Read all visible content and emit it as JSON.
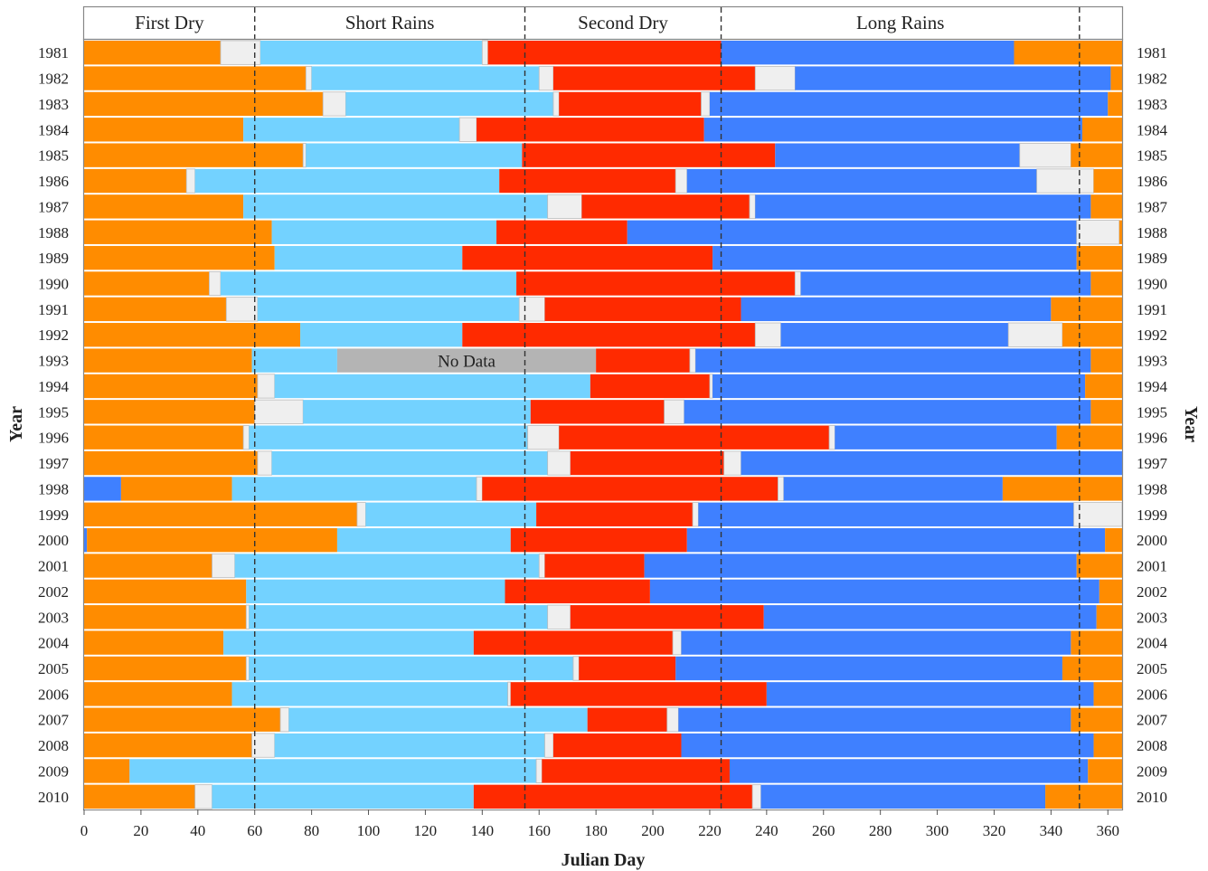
{
  "chart_data": {
    "type": "bar",
    "orientation": "horizontal-stacked",
    "xlabel": "Julian Day",
    "ylabel": "Year",
    "xlim": [
      0,
      365
    ],
    "x_ticks": [
      0,
      20,
      40,
      60,
      80,
      100,
      120,
      140,
      160,
      180,
      200,
      220,
      240,
      260,
      280,
      300,
      320,
      340,
      360
    ],
    "season_labels": [
      "First Dry",
      "Short Rains",
      "Second Dry",
      "Long Rains"
    ],
    "season_boundaries": [
      60,
      155,
      224,
      350
    ],
    "no_data_label": "No Data",
    "colors": {
      "dry": "#FF8C00",
      "short_rains": "#73D2FF",
      "second_dry": "#FF2A00",
      "long_rains": "#3F80FF",
      "gap": "#EFEFEF",
      "no_data": "#B4B4B4"
    },
    "legend": "none",
    "grid": false,
    "years": [
      {
        "year": "1981",
        "segments": [
          [
            "dry",
            0,
            48
          ],
          [
            "gap",
            48,
            62
          ],
          [
            "short_rains",
            62,
            140
          ],
          [
            "gap",
            140,
            142
          ],
          [
            "second_dry",
            142,
            224
          ],
          [
            "long_rains",
            224,
            327
          ],
          [
            "dry",
            327,
            365
          ]
        ]
      },
      {
        "year": "1982",
        "segments": [
          [
            "dry",
            0,
            78
          ],
          [
            "gap",
            78,
            80
          ],
          [
            "short_rains",
            80,
            160
          ],
          [
            "gap",
            160,
            165
          ],
          [
            "second_dry",
            165,
            236
          ],
          [
            "gap",
            236,
            250
          ],
          [
            "long_rains",
            250,
            361
          ],
          [
            "dry",
            361,
            365
          ]
        ]
      },
      {
        "year": "1983",
        "segments": [
          [
            "dry",
            0,
            84
          ],
          [
            "gap",
            84,
            92
          ],
          [
            "short_rains",
            92,
            165
          ],
          [
            "gap",
            165,
            167
          ],
          [
            "second_dry",
            167,
            217
          ],
          [
            "gap",
            217,
            220
          ],
          [
            "long_rains",
            220,
            360
          ],
          [
            "dry",
            360,
            365
          ]
        ]
      },
      {
        "year": "1984",
        "segments": [
          [
            "dry",
            0,
            56
          ],
          [
            "short_rains",
            56,
            132
          ],
          [
            "gap",
            132,
            138
          ],
          [
            "second_dry",
            138,
            218
          ],
          [
            "long_rains",
            218,
            351
          ],
          [
            "dry",
            351,
            365
          ]
        ]
      },
      {
        "year": "1985",
        "segments": [
          [
            "dry",
            0,
            77
          ],
          [
            "gap",
            77,
            78
          ],
          [
            "short_rains",
            78,
            154
          ],
          [
            "second_dry",
            154,
            243
          ],
          [
            "long_rains",
            243,
            329
          ],
          [
            "gap",
            329,
            347
          ],
          [
            "dry",
            347,
            365
          ]
        ]
      },
      {
        "year": "1986",
        "segments": [
          [
            "dry",
            0,
            36
          ],
          [
            "gap",
            36,
            39
          ],
          [
            "short_rains",
            39,
            146
          ],
          [
            "second_dry",
            146,
            208
          ],
          [
            "gap",
            208,
            212
          ],
          [
            "long_rains",
            212,
            335
          ],
          [
            "gap",
            335,
            355
          ],
          [
            "dry",
            355,
            365
          ]
        ]
      },
      {
        "year": "1987",
        "segments": [
          [
            "dry",
            0,
            56
          ],
          [
            "short_rains",
            56,
            163
          ],
          [
            "gap",
            163,
            175
          ],
          [
            "second_dry",
            175,
            234
          ],
          [
            "gap",
            234,
            236
          ],
          [
            "long_rains",
            236,
            354
          ],
          [
            "dry",
            354,
            365
          ]
        ]
      },
      {
        "year": "1988",
        "segments": [
          [
            "dry",
            0,
            66
          ],
          [
            "short_rains",
            66,
            145
          ],
          [
            "second_dry",
            145,
            191
          ],
          [
            "long_rains",
            191,
            349
          ],
          [
            "gap",
            349,
            364
          ],
          [
            "dry",
            364,
            365
          ]
        ]
      },
      {
        "year": "1989",
        "segments": [
          [
            "dry",
            0,
            67
          ],
          [
            "short_rains",
            67,
            133
          ],
          [
            "second_dry",
            133,
            221
          ],
          [
            "long_rains",
            221,
            349
          ],
          [
            "dry",
            349,
            365
          ]
        ]
      },
      {
        "year": "1990",
        "segments": [
          [
            "dry",
            0,
            44
          ],
          [
            "gap",
            44,
            48
          ],
          [
            "short_rains",
            48,
            152
          ],
          [
            "second_dry",
            152,
            250
          ],
          [
            "gap",
            250,
            252
          ],
          [
            "long_rains",
            252,
            354
          ],
          [
            "dry",
            354,
            365
          ]
        ]
      },
      {
        "year": "1991",
        "segments": [
          [
            "dry",
            0,
            50
          ],
          [
            "gap",
            50,
            61
          ],
          [
            "short_rains",
            61,
            153
          ],
          [
            "gap",
            153,
            162
          ],
          [
            "second_dry",
            162,
            231
          ],
          [
            "long_rains",
            231,
            340
          ],
          [
            "dry",
            340,
            365
          ]
        ]
      },
      {
        "year": "1992",
        "segments": [
          [
            "dry",
            0,
            76
          ],
          [
            "short_rains",
            76,
            133
          ],
          [
            "second_dry",
            133,
            236
          ],
          [
            "gap",
            236,
            245
          ],
          [
            "long_rains",
            245,
            325
          ],
          [
            "gap",
            325,
            344
          ],
          [
            "dry",
            344,
            365
          ]
        ]
      },
      {
        "year": "1993",
        "segments": [
          [
            "dry",
            0,
            59
          ],
          [
            "short_rains",
            59,
            89
          ],
          [
            "no_data",
            89,
            180
          ],
          [
            "second_dry",
            180,
            213
          ],
          [
            "gap",
            213,
            215
          ],
          [
            "long_rains",
            215,
            354
          ],
          [
            "dry",
            354,
            365
          ]
        ]
      },
      {
        "year": "1994",
        "segments": [
          [
            "dry",
            0,
            61
          ],
          [
            "gap",
            61,
            67
          ],
          [
            "short_rains",
            67,
            178
          ],
          [
            "second_dry",
            178,
            220
          ],
          [
            "gap",
            220,
            221
          ],
          [
            "long_rains",
            221,
            352
          ],
          [
            "dry",
            352,
            365
          ]
        ]
      },
      {
        "year": "1995",
        "segments": [
          [
            "dry",
            0,
            60
          ],
          [
            "gap",
            60,
            77
          ],
          [
            "short_rains",
            77,
            157
          ],
          [
            "second_dry",
            157,
            204
          ],
          [
            "gap",
            204,
            211
          ],
          [
            "long_rains",
            211,
            354
          ],
          [
            "dry",
            354,
            365
          ]
        ]
      },
      {
        "year": "1996",
        "segments": [
          [
            "dry",
            0,
            56
          ],
          [
            "gap",
            56,
            58
          ],
          [
            "short_rains",
            58,
            156
          ],
          [
            "gap",
            156,
            167
          ],
          [
            "second_dry",
            167,
            262
          ],
          [
            "gap",
            262,
            264
          ],
          [
            "long_rains",
            264,
            342
          ],
          [
            "dry",
            342,
            365
          ]
        ]
      },
      {
        "year": "1997",
        "segments": [
          [
            "dry",
            0,
            61
          ],
          [
            "gap",
            61,
            66
          ],
          [
            "short_rains",
            66,
            163
          ],
          [
            "gap",
            163,
            171
          ],
          [
            "second_dry",
            171,
            225
          ],
          [
            "gap",
            225,
            231
          ],
          [
            "long_rains",
            231,
            365
          ]
        ]
      },
      {
        "year": "1998",
        "segments": [
          [
            "long_rains",
            0,
            13
          ],
          [
            "dry",
            13,
            52
          ],
          [
            "short_rains",
            52,
            138
          ],
          [
            "gap",
            138,
            140
          ],
          [
            "second_dry",
            140,
            244
          ],
          [
            "gap",
            244,
            246
          ],
          [
            "long_rains",
            246,
            323
          ],
          [
            "dry",
            323,
            365
          ]
        ]
      },
      {
        "year": "1999",
        "segments": [
          [
            "dry",
            0,
            96
          ],
          [
            "gap",
            96,
            99
          ],
          [
            "short_rains",
            99,
            159
          ],
          [
            "second_dry",
            159,
            214
          ],
          [
            "gap",
            214,
            216
          ],
          [
            "long_rains",
            216,
            348
          ],
          [
            "gap",
            348,
            365
          ]
        ]
      },
      {
        "year": "2000",
        "segments": [
          [
            "long_rains",
            0,
            1
          ],
          [
            "dry",
            1,
            89
          ],
          [
            "short_rains",
            89,
            150
          ],
          [
            "second_dry",
            150,
            212
          ],
          [
            "long_rains",
            212,
            359
          ],
          [
            "dry",
            359,
            365
          ]
        ]
      },
      {
        "year": "2001",
        "segments": [
          [
            "dry",
            0,
            45
          ],
          [
            "gap",
            45,
            53
          ],
          [
            "short_rains",
            53,
            160
          ],
          [
            "gap",
            160,
            162
          ],
          [
            "second_dry",
            162,
            197
          ],
          [
            "long_rains",
            197,
            349
          ],
          [
            "dry",
            349,
            365
          ]
        ]
      },
      {
        "year": "2002",
        "segments": [
          [
            "dry",
            0,
            57
          ],
          [
            "short_rains",
            57,
            148
          ],
          [
            "second_dry",
            148,
            199
          ],
          [
            "long_rains",
            199,
            357
          ],
          [
            "dry",
            357,
            365
          ]
        ]
      },
      {
        "year": "2003",
        "segments": [
          [
            "dry",
            0,
            57
          ],
          [
            "gap",
            57,
            58
          ],
          [
            "short_rains",
            58,
            163
          ],
          [
            "gap",
            163,
            171
          ],
          [
            "second_dry",
            171,
            239
          ],
          [
            "long_rains",
            239,
            356
          ],
          [
            "dry",
            356,
            365
          ]
        ]
      },
      {
        "year": "2004",
        "segments": [
          [
            "dry",
            0,
            49
          ],
          [
            "short_rains",
            49,
            137
          ],
          [
            "second_dry",
            137,
            207
          ],
          [
            "gap",
            207,
            210
          ],
          [
            "long_rains",
            210,
            347
          ],
          [
            "dry",
            347,
            365
          ]
        ]
      },
      {
        "year": "2005",
        "segments": [
          [
            "dry",
            0,
            57
          ],
          [
            "gap",
            57,
            58
          ],
          [
            "short_rains",
            58,
            172
          ],
          [
            "gap",
            172,
            174
          ],
          [
            "second_dry",
            174,
            208
          ],
          [
            "long_rains",
            208,
            344
          ],
          [
            "dry",
            344,
            365
          ]
        ]
      },
      {
        "year": "2006",
        "segments": [
          [
            "dry",
            0,
            52
          ],
          [
            "short_rains",
            52,
            149
          ],
          [
            "gap",
            149,
            150
          ],
          [
            "second_dry",
            150,
            240
          ],
          [
            "long_rains",
            240,
            355
          ],
          [
            "dry",
            355,
            365
          ]
        ]
      },
      {
        "year": "2007",
        "segments": [
          [
            "dry",
            0,
            69
          ],
          [
            "gap",
            69,
            72
          ],
          [
            "short_rains",
            72,
            177
          ],
          [
            "second_dry",
            177,
            205
          ],
          [
            "gap",
            205,
            209
          ],
          [
            "long_rains",
            209,
            347
          ],
          [
            "dry",
            347,
            365
          ]
        ]
      },
      {
        "year": "2008",
        "segments": [
          [
            "dry",
            0,
            59
          ],
          [
            "gap",
            59,
            67
          ],
          [
            "short_rains",
            67,
            162
          ],
          [
            "gap",
            162,
            165
          ],
          [
            "second_dry",
            165,
            210
          ],
          [
            "long_rains",
            210,
            355
          ],
          [
            "dry",
            355,
            365
          ]
        ]
      },
      {
        "year": "2009",
        "segments": [
          [
            "dry",
            0,
            16
          ],
          [
            "short_rains",
            16,
            159
          ],
          [
            "gap",
            159,
            161
          ],
          [
            "second_dry",
            161,
            227
          ],
          [
            "long_rains",
            227,
            353
          ],
          [
            "dry",
            353,
            365
          ]
        ]
      },
      {
        "year": "2010",
        "segments": [
          [
            "dry",
            0,
            39
          ],
          [
            "gap",
            39,
            45
          ],
          [
            "short_rains",
            45,
            137
          ],
          [
            "second_dry",
            137,
            235
          ],
          [
            "gap",
            235,
            238
          ],
          [
            "long_rains",
            238,
            338
          ],
          [
            "dry",
            338,
            365
          ]
        ]
      }
    ]
  }
}
